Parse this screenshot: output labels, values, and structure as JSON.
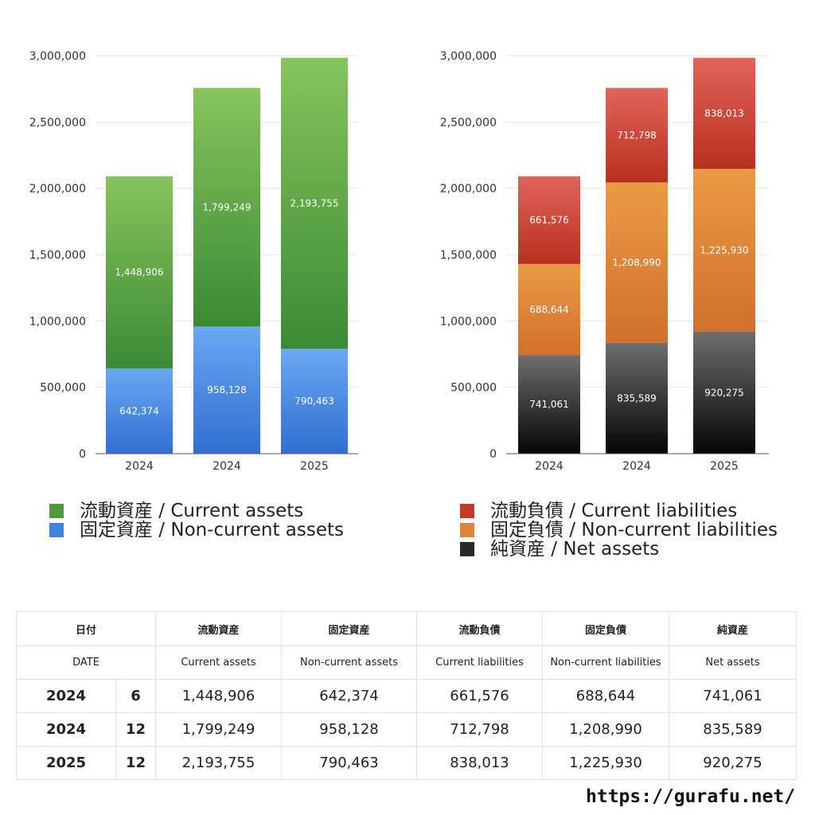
{
  "chart_data": [
    {
      "type": "bar",
      "stacked": true,
      "categories": [
        "2024",
        "2024",
        "2025"
      ],
      "ylim": [
        0,
        3000000
      ],
      "yticks": [
        "0",
        "500,000",
        "1,000,000",
        "1,500,000",
        "2,000,000",
        "2,500,000",
        "3,000,000"
      ],
      "legend_position": "bottom-left",
      "grid": true,
      "series": [
        {
          "name": "固定資産 / Non-current assets",
          "values": [
            642374,
            958128,
            790463
          ],
          "labels": [
            "642,374",
            "958,128",
            "790,463"
          ],
          "color_top": "#6aa8f2",
          "color_bottom": "#2f6fd0"
        },
        {
          "name": "流動資産 / Current assets",
          "values": [
            1448906,
            1799249,
            2193755
          ],
          "labels": [
            "1,448,906",
            "1,799,249",
            "2,193,755"
          ],
          "color_top": "#88c45c",
          "color_bottom": "#3a8a35"
        }
      ]
    },
    {
      "type": "bar",
      "stacked": true,
      "categories": [
        "2024",
        "2024",
        "2025"
      ],
      "ylim": [
        0,
        3000000
      ],
      "yticks": [
        "0",
        "500,000",
        "1,000,000",
        "1,500,000",
        "2,000,000",
        "2,500,000",
        "3,000,000"
      ],
      "legend_position": "bottom-right",
      "grid": true,
      "series": [
        {
          "name": "純資産 / Net assets",
          "values": [
            741061,
            835589,
            920275
          ],
          "labels": [
            "741,061",
            "835,589",
            "920,275"
          ],
          "color_top": "#6e6e6e",
          "color_bottom": "#050505"
        },
        {
          "name": "固定負債 / Non-current liabilities",
          "values": [
            688644,
            1208990,
            1225930
          ],
          "labels": [
            "688,644",
            "1,208,990",
            "1,225,930"
          ],
          "color_top": "#eb9a45",
          "color_bottom": "#d0702c"
        },
        {
          "name": "流動負債 / Current liabilities",
          "values": [
            661576,
            712798,
            838013
          ],
          "labels": [
            "661,576",
            "712,798",
            "838,013"
          ],
          "color_top": "#e0645a",
          "color_bottom": "#b8301f"
        }
      ]
    }
  ],
  "legend_left": [
    {
      "label": "流動資産 / Current assets",
      "color": "#4f9a3e"
    },
    {
      "label": "固定資産 / Non-current assets",
      "color": "#3f84e0"
    }
  ],
  "legend_right": [
    {
      "label": "流動負債 / Current liabilities",
      "color": "#c8392b"
    },
    {
      "label": "固定負債 / Non-current liabilities",
      "color": "#e0833a"
    },
    {
      "label": "純資産 / Net assets",
      "color": "#2a2a2a"
    }
  ],
  "table": {
    "header_jp": [
      "日付",
      "流動資産",
      "固定資産",
      "流動負債",
      "固定負債",
      "純資産"
    ],
    "header_en": [
      "DATE",
      "Current assets",
      "Non-current assets",
      "Current liabilities",
      "Non-current liabilities",
      "Net assets"
    ],
    "rows": [
      {
        "year": "2024",
        "month": "6",
        "cells": [
          "1,448,906",
          "642,374",
          "661,576",
          "688,644",
          "741,061"
        ]
      },
      {
        "year": "2024",
        "month": "12",
        "cells": [
          "1,799,249",
          "958,128",
          "712,798",
          "1,208,990",
          "835,589"
        ]
      },
      {
        "year": "2025",
        "month": "12",
        "cells": [
          "2,193,755",
          "790,463",
          "838,013",
          "1,225,930",
          "920,275"
        ]
      }
    ]
  },
  "site": "https://gurafu.net/"
}
